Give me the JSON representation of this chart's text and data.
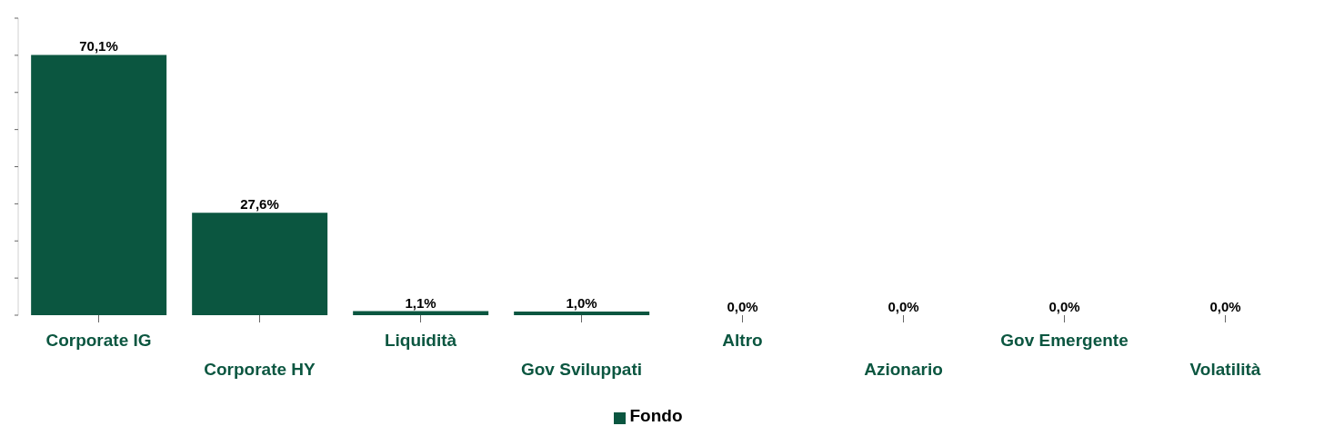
{
  "chart_data": {
    "type": "bar",
    "categories": [
      "Corporate IG",
      "Corporate HY",
      "Liquidità",
      "Gov Sviluppati",
      "Altro",
      "Azionario",
      "Gov Emergente",
      "Volatilità"
    ],
    "series": [
      {
        "name": "Fondo",
        "color": "#0b5640",
        "values": [
          70.1,
          27.6,
          1.1,
          1.0,
          0,
          0,
          0,
          0
        ],
        "value_labels": [
          "70,1%",
          "27,6%",
          "1,1%",
          "1,0%",
          "0,0%",
          "0,0%",
          "0,0%",
          "0,0%"
        ]
      }
    ],
    "ylim": [
      0,
      80
    ],
    "yticks": [
      {
        "value": 0,
        "label": null
      },
      {
        "value": 10,
        "label": null
      },
      {
        "value": 20,
        "label": null
      },
      {
        "value": 30,
        "label": null
      },
      {
        "value": 40,
        "label": null
      },
      {
        "value": 50,
        "label": null
      },
      {
        "value": 60,
        "label": null
      },
      {
        "value": 70,
        "label": null
      },
      {
        "value": 80,
        "label": null
      }
    ],
    "grid": false,
    "legend": "bottom"
  }
}
